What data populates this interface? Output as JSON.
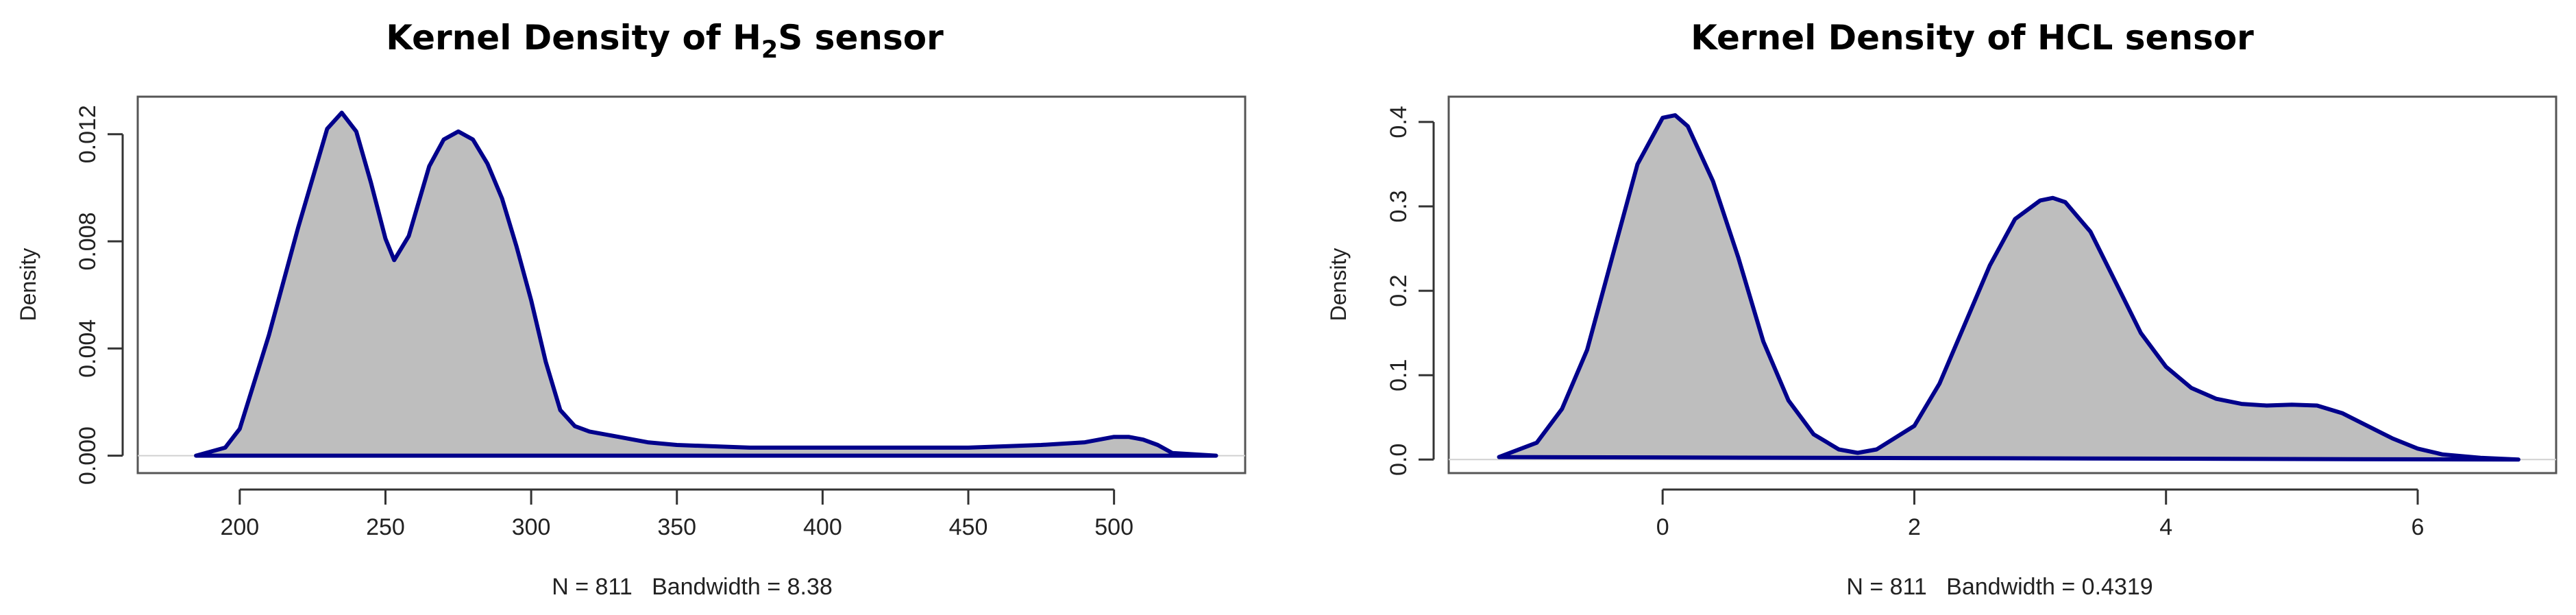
{
  "chart_data": [
    {
      "type": "area",
      "title": "Kernel Density of H",
      "title_subscript": "2",
      "title_suffix": "S sensor",
      "xlabel": "N = 811   Bandwidth = 8.38",
      "ylabel": "Density",
      "xlim": [
        165,
        545
      ],
      "ylim": [
        -0.00065,
        0.0134
      ],
      "xticks": [
        200,
        250,
        300,
        350,
        400,
        450,
        500
      ],
      "yticks": [
        0.0,
        0.004,
        0.008,
        0.012
      ],
      "ytick_labels": [
        "0.000",
        "0.004",
        "0.008",
        "0.012"
      ],
      "fill_color": "#bebebe",
      "line_color": "#00008b",
      "x": [
        185,
        195,
        200,
        210,
        220,
        230,
        235,
        240,
        245,
        250,
        253,
        258,
        265,
        270,
        275,
        280,
        285,
        290,
        295,
        300,
        305,
        310,
        315,
        320,
        330,
        340,
        350,
        375,
        400,
        425,
        450,
        475,
        490,
        500,
        505,
        510,
        515,
        520,
        535
      ],
      "y": [
        0.0,
        0.0003,
        0.001,
        0.0045,
        0.0085,
        0.0122,
        0.0128,
        0.0121,
        0.0102,
        0.0081,
        0.0073,
        0.0082,
        0.0108,
        0.0118,
        0.0121,
        0.0118,
        0.0109,
        0.0096,
        0.0078,
        0.0058,
        0.0035,
        0.0017,
        0.0011,
        0.0009,
        0.0007,
        0.0005,
        0.0004,
        0.0003,
        0.0003,
        0.0003,
        0.0003,
        0.0004,
        0.0005,
        0.0007,
        0.0007,
        0.0006,
        0.0004,
        0.0001,
        0.0
      ]
    },
    {
      "type": "area",
      "title": "Kernel Density of HCL sensor",
      "xlabel": "N = 811   Bandwidth = 0.4319",
      "ylabel": "Density",
      "xlim": [
        -1.7,
        7.1
      ],
      "ylim": [
        -0.016,
        0.43
      ],
      "xticks": [
        0,
        2,
        4,
        6
      ],
      "yticks": [
        0.0,
        0.1,
        0.2,
        0.3,
        0.4
      ],
      "ytick_labels": [
        "0.0",
        "0.1",
        "0.2",
        "0.3",
        "0.4"
      ],
      "fill_color": "#bebebe",
      "line_color": "#00008b",
      "x": [
        -1.3,
        -1.0,
        -0.8,
        -0.6,
        -0.4,
        -0.2,
        0.0,
        0.1,
        0.2,
        0.4,
        0.6,
        0.8,
        1.0,
        1.2,
        1.4,
        1.55,
        1.7,
        2.0,
        2.2,
        2.4,
        2.6,
        2.8,
        3.0,
        3.1,
        3.2,
        3.4,
        3.6,
        3.8,
        4.0,
        4.2,
        4.4,
        4.6,
        4.8,
        5.0,
        5.2,
        5.4,
        5.6,
        5.8,
        6.0,
        6.2,
        6.5,
        6.8
      ],
      "y": [
        0.003,
        0.02,
        0.06,
        0.13,
        0.24,
        0.35,
        0.405,
        0.408,
        0.395,
        0.33,
        0.24,
        0.14,
        0.07,
        0.03,
        0.012,
        0.008,
        0.012,
        0.04,
        0.09,
        0.16,
        0.23,
        0.285,
        0.307,
        0.31,
        0.305,
        0.27,
        0.21,
        0.15,
        0.11,
        0.085,
        0.072,
        0.066,
        0.064,
        0.065,
        0.064,
        0.055,
        0.04,
        0.025,
        0.013,
        0.006,
        0.002,
        0.0
      ]
    }
  ]
}
